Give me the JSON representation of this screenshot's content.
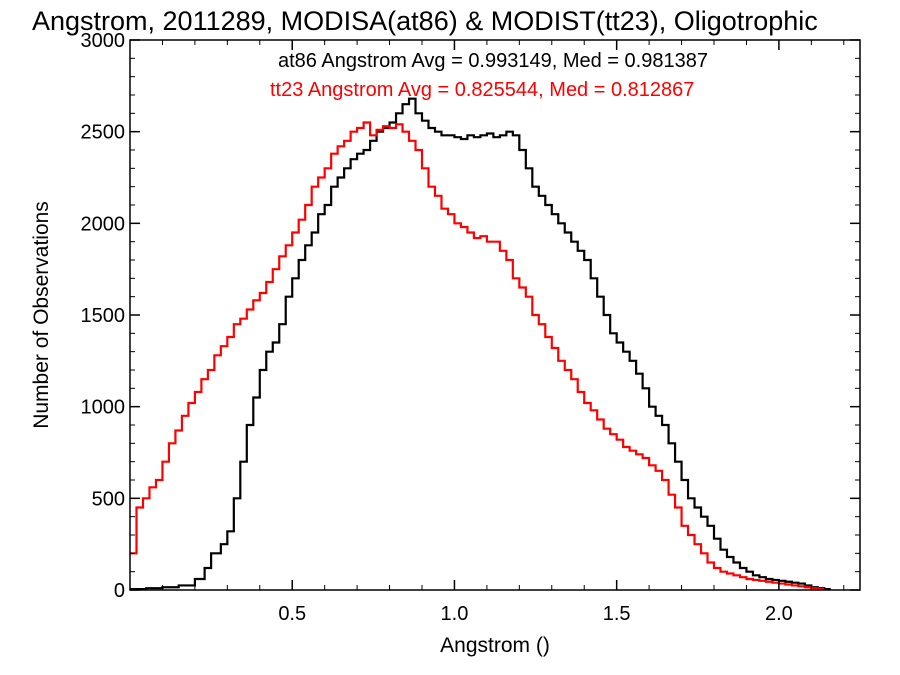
{
  "chart_data": {
    "type": "line",
    "subtype": "step-histogram",
    "title": "Angstrom, 2011289, MODISA(at86) & MODIST(tt23), Oligotrophic",
    "xlabel": "Angstrom ()",
    "ylabel": "Number of Observations",
    "xlim": [
      0.0,
      2.25
    ],
    "ylim": [
      0,
      3000
    ],
    "x_ticks": [
      0.5,
      1.0,
      1.5,
      2.0
    ],
    "x_tick_labels": [
      "0.5",
      "1.0",
      "1.5",
      "2.0"
    ],
    "y_ticks": [
      0,
      500,
      1000,
      1500,
      2000,
      2500,
      3000
    ],
    "y_tick_labels": [
      "0",
      "500",
      "1000",
      "1500",
      "2000",
      "2500",
      "3000"
    ],
    "grid": false,
    "annotations": [
      {
        "text": "at86 Angstrom Avg = 0.993149, Med = 0.981387",
        "color": "#000000"
      },
      {
        "text": "tt23 Angstrom Avg = 0.825544, Med = 0.812867",
        "color": "#ff0000"
      }
    ],
    "series": [
      {
        "color": "#000000",
        "x": [
          0.0,
          0.05,
          0.1,
          0.15,
          0.2,
          0.23,
          0.25,
          0.28,
          0.3,
          0.32,
          0.34,
          0.36,
          0.38,
          0.4,
          0.42,
          0.44,
          0.46,
          0.48,
          0.5,
          0.52,
          0.54,
          0.56,
          0.58,
          0.6,
          0.62,
          0.64,
          0.66,
          0.68,
          0.7,
          0.72,
          0.74,
          0.76,
          0.78,
          0.8,
          0.82,
          0.84,
          0.86,
          0.88,
          0.9,
          0.92,
          0.94,
          0.96,
          0.98,
          1.0,
          1.02,
          1.04,
          1.06,
          1.08,
          1.1,
          1.12,
          1.14,
          1.16,
          1.18,
          1.2,
          1.22,
          1.24,
          1.26,
          1.28,
          1.3,
          1.32,
          1.34,
          1.36,
          1.38,
          1.4,
          1.42,
          1.44,
          1.46,
          1.48,
          1.5,
          1.52,
          1.54,
          1.56,
          1.58,
          1.6,
          1.62,
          1.64,
          1.66,
          1.68,
          1.7,
          1.72,
          1.74,
          1.76,
          1.78,
          1.8,
          1.82,
          1.84,
          1.86,
          1.88,
          1.9,
          1.92,
          1.94,
          1.96,
          1.98,
          2.0,
          2.02,
          2.04,
          2.06,
          2.08,
          2.1,
          2.12,
          2.14
        ],
        "y": [
          5,
          10,
          15,
          25,
          60,
          120,
          200,
          250,
          320,
          500,
          700,
          900,
          1050,
          1200,
          1300,
          1350,
          1450,
          1600,
          1700,
          1800,
          1880,
          1950,
          2050,
          2100,
          2200,
          2250,
          2300,
          2350,
          2380,
          2400,
          2450,
          2500,
          2520,
          2550,
          2600,
          2650,
          2680,
          2600,
          2560,
          2520,
          2500,
          2480,
          2480,
          2470,
          2460,
          2480,
          2470,
          2480,
          2490,
          2470,
          2480,
          2500,
          2480,
          2400,
          2300,
          2200,
          2150,
          2100,
          2050,
          2000,
          1950,
          1900,
          1850,
          1800,
          1700,
          1600,
          1500,
          1400,
          1350,
          1300,
          1250,
          1180,
          1100,
          1000,
          950,
          900,
          800,
          700,
          600,
          500,
          450,
          400,
          350,
          280,
          220,
          180,
          150,
          120,
          100,
          80,
          70,
          60,
          55,
          50,
          45,
          40,
          35,
          25,
          15,
          10,
          5
        ]
      },
      {
        "color": "#ff0000",
        "x": [
          0.0,
          0.02,
          0.04,
          0.06,
          0.08,
          0.1,
          0.12,
          0.14,
          0.16,
          0.18,
          0.2,
          0.22,
          0.24,
          0.26,
          0.28,
          0.3,
          0.32,
          0.34,
          0.36,
          0.38,
          0.4,
          0.42,
          0.44,
          0.46,
          0.48,
          0.5,
          0.52,
          0.54,
          0.56,
          0.58,
          0.6,
          0.62,
          0.64,
          0.66,
          0.68,
          0.7,
          0.72,
          0.74,
          0.76,
          0.78,
          0.8,
          0.82,
          0.84,
          0.86,
          0.88,
          0.9,
          0.92,
          0.94,
          0.96,
          0.98,
          1.0,
          1.02,
          1.04,
          1.06,
          1.08,
          1.1,
          1.12,
          1.14,
          1.16,
          1.18,
          1.2,
          1.22,
          1.24,
          1.26,
          1.28,
          1.3,
          1.32,
          1.34,
          1.36,
          1.38,
          1.4,
          1.42,
          1.44,
          1.46,
          1.48,
          1.5,
          1.52,
          1.54,
          1.56,
          1.58,
          1.6,
          1.62,
          1.64,
          1.66,
          1.68,
          1.7,
          1.72,
          1.74,
          1.76,
          1.78,
          1.8,
          1.82,
          1.84,
          1.86,
          1.88,
          1.9,
          1.92,
          1.94,
          1.96,
          1.98,
          2.0,
          2.02,
          2.04,
          2.06,
          2.08,
          2.1,
          2.12
        ],
        "y": [
          200,
          450,
          500,
          560,
          600,
          700,
          800,
          870,
          950,
          1020,
          1080,
          1150,
          1200,
          1280,
          1330,
          1380,
          1450,
          1480,
          1530,
          1580,
          1620,
          1680,
          1750,
          1820,
          1880,
          1950,
          2020,
          2100,
          2200,
          2250,
          2300,
          2380,
          2420,
          2450,
          2500,
          2520,
          2550,
          2480,
          2510,
          2530,
          2520,
          2540,
          2500,
          2450,
          2400,
          2300,
          2200,
          2150,
          2080,
          2050,
          2000,
          1980,
          1950,
          1920,
          1930,
          1900,
          1900,
          1850,
          1800,
          1700,
          1650,
          1600,
          1500,
          1450,
          1380,
          1320,
          1250,
          1200,
          1150,
          1080,
          1020,
          980,
          930,
          880,
          850,
          820,
          780,
          760,
          740,
          720,
          680,
          650,
          600,
          520,
          450,
          350,
          300,
          250,
          200,
          150,
          120,
          100,
          90,
          80,
          70,
          60,
          55,
          50,
          45,
          40,
          35,
          30,
          25,
          20,
          15,
          10,
          5
        ]
      }
    ]
  }
}
